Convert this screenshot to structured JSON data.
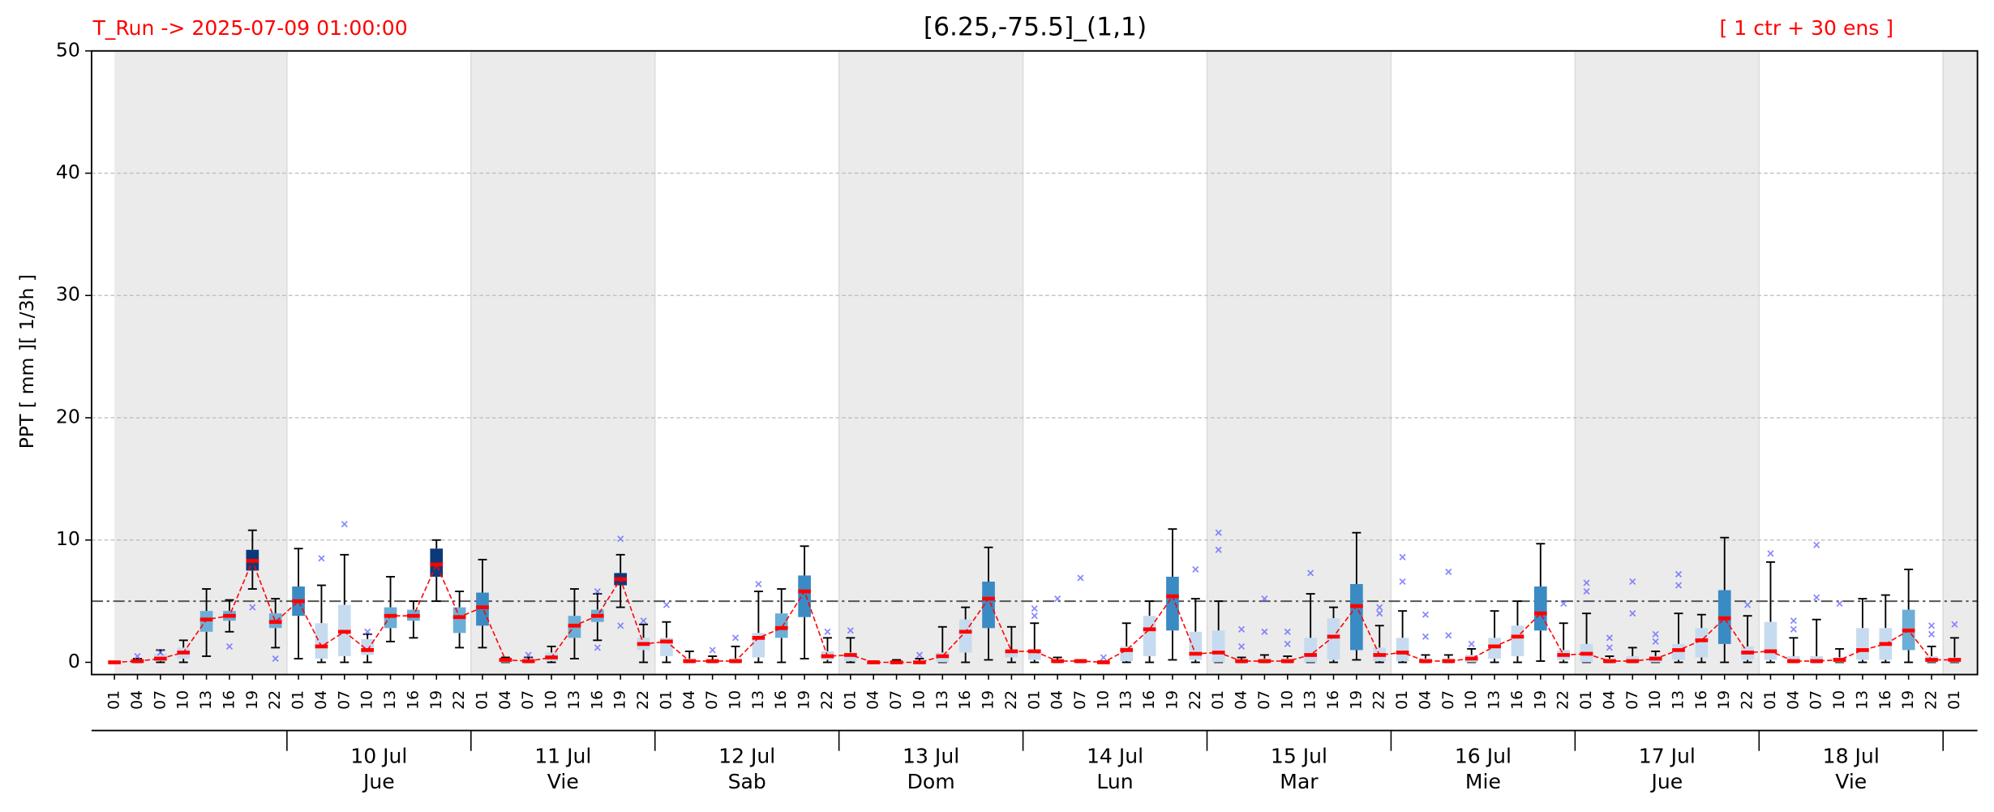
{
  "chart_data": {
    "type": "box",
    "title": "[6.25,-75.5]_(1,1)",
    "run_label": "T_Run -> 2025-07-09  01:00:00",
    "members_label": "[ 1 ctr + 30 ens ]",
    "ylabel": "PPT  [ mm ][ 1/3h ]",
    "ylim": [
      -1,
      50
    ],
    "yticks": [
      0,
      10,
      20,
      30,
      40,
      50
    ],
    "grid": true,
    "threshold": 5,
    "categories": [
      "01",
      "04",
      "07",
      "10",
      "13",
      "16",
      "19",
      "22",
      "01",
      "04",
      "07",
      "10",
      "13",
      "16",
      "19",
      "22",
      "01",
      "04",
      "07",
      "10",
      "13",
      "16",
      "19",
      "22",
      "01",
      "04",
      "07",
      "10",
      "13",
      "16",
      "19",
      "22",
      "01",
      "04",
      "07",
      "10",
      "13",
      "16",
      "19",
      "22",
      "01",
      "04",
      "07",
      "10",
      "13",
      "16",
      "19",
      "22",
      "01",
      "04",
      "07",
      "10",
      "13",
      "16",
      "19",
      "22",
      "01",
      "04",
      "07",
      "10",
      "13",
      "16",
      "19",
      "22",
      "01",
      "04",
      "07",
      "10",
      "13",
      "16",
      "19",
      "22",
      "01",
      "04",
      "07",
      "10",
      "13",
      "16",
      "19",
      "22",
      "01"
    ],
    "day_labels": [
      "10 Jul",
      "11 Jul",
      "12 Jul",
      "13 Jul",
      "14 Jul",
      "15 Jul",
      "16 Jul",
      "17 Jul",
      "18 Jul"
    ],
    "weekdays": [
      "Jue",
      "Vie",
      "Sab",
      "Dom",
      "Lun",
      "Mar",
      "Mie",
      "Jue",
      "Vie"
    ],
    "median": [
      0,
      0.1,
      0.3,
      0.8,
      3.5,
      3.8,
      8.3,
      3.3,
      5.0,
      1.3,
      2.5,
      1.0,
      3.8,
      3.8,
      8.0,
      3.7,
      4.5,
      0.2,
      0.1,
      0.4,
      3.0,
      3.8,
      6.8,
      1.5,
      1.7,
      0.1,
      0.1,
      0.1,
      2.0,
      2.8,
      5.8,
      0.5,
      0.6,
      0,
      0,
      0,
      0.5,
      2.5,
      5.2,
      0.9,
      0.9,
      0.1,
      0.1,
      0,
      1.0,
      2.7,
      5.4,
      0.7,
      0.8,
      0.1,
      0.1,
      0.1,
      0.6,
      2.1,
      4.6,
      0.6,
      0.8,
      0.1,
      0.1,
      0.3,
      1.3,
      2.1,
      4.0,
      0.6,
      0.7,
      0.1,
      0.1,
      0.3,
      1.0,
      1.8,
      3.6,
      0.8,
      0.9,
      0.1,
      0.1,
      0.2,
      1.0,
      1.5,
      2.6,
      0.2,
      0.2
    ],
    "q1": [
      0,
      0,
      0.1,
      0.3,
      2.5,
      3.4,
      7.5,
      2.8,
      3.8,
      0.3,
      0.5,
      0.6,
      2.8,
      3.4,
      7.0,
      2.4,
      3.0,
      0,
      0,
      0.1,
      2.0,
      3.3,
      6.3,
      1.0,
      0.5,
      0,
      0,
      0,
      0.4,
      2.0,
      3.7,
      0.2,
      0.1,
      0,
      0,
      0,
      0,
      0.8,
      2.8,
      0.4,
      0.2,
      0,
      0,
      0,
      0.1,
      0.5,
      2.6,
      0.2,
      0,
      0,
      0,
      0,
      0,
      0.2,
      1.0,
      0.1,
      0.1,
      0,
      0,
      0,
      0.3,
      0.5,
      2.6,
      0.2,
      0,
      0,
      0,
      0,
      0.2,
      0.4,
      1.5,
      0.2,
      0.2,
      0,
      0,
      0,
      0.2,
      0.2,
      1.0,
      0,
      0
    ],
    "q3": [
      0,
      0.2,
      0.7,
      1.2,
      4.2,
      4.2,
      9.2,
      4.0,
      6.2,
      3.2,
      4.7,
      1.9,
      4.5,
      4.3,
      9.3,
      4.5,
      5.7,
      0.3,
      0.2,
      0.8,
      3.8,
      4.3,
      7.3,
      2.0,
      2.0,
      0.3,
      0.2,
      0.3,
      2.4,
      4.0,
      7.1,
      0.9,
      0.8,
      0.1,
      0.1,
      0.1,
      0.8,
      3.5,
      6.6,
      1.0,
      1.0,
      0.2,
      0.2,
      0.1,
      1.3,
      3.8,
      7.0,
      2.5,
      2.6,
      0.2,
      0.3,
      0.3,
      2.0,
      3.6,
      6.4,
      1.2,
      2.0,
      0.3,
      0.3,
      0.6,
      2.0,
      3.0,
      6.2,
      1.0,
      1.5,
      0.3,
      0.5,
      0.5,
      1.5,
      2.8,
      5.9,
      1.3,
      3.3,
      0.5,
      0.5,
      0.4,
      2.8,
      2.8,
      4.3,
      0.5,
      0.4
    ],
    "whisker_low": [
      0,
      0,
      0,
      0,
      0.5,
      2.5,
      6.0,
      1.2,
      0.3,
      0,
      0,
      0,
      1.7,
      2.0,
      5.0,
      1.2,
      1.2,
      0,
      0,
      0,
      0.3,
      1.8,
      4.5,
      0,
      0,
      0,
      0,
      0,
      0,
      0,
      0.3,
      0,
      0,
      0,
      0,
      0,
      0,
      0,
      0.2,
      0,
      0,
      0,
      0,
      0,
      0,
      0,
      0.2,
      0,
      0,
      0,
      0,
      0,
      0,
      0,
      0.2,
      0,
      0,
      0,
      0,
      0,
      0,
      0,
      0.1,
      0,
      0,
      0,
      0,
      0,
      0,
      0,
      0,
      0,
      0,
      0,
      0,
      0,
      0,
      0,
      0,
      0,
      0
    ],
    "whisker_high": [
      0,
      0.3,
      1.0,
      1.8,
      6.0,
      5.1,
      10.8,
      5.2,
      9.3,
      6.3,
      8.8,
      2.3,
      7.0,
      5.0,
      10.0,
      5.8,
      8.4,
      0.4,
      0.4,
      1.3,
      6.0,
      5.6,
      8.8,
      3.1,
      3.3,
      0.9,
      0.5,
      1.3,
      5.8,
      6.0,
      9.5,
      2.0,
      2.0,
      0.1,
      0.2,
      0.3,
      2.9,
      4.5,
      9.4,
      2.9,
      3.2,
      0.4,
      0.2,
      0.1,
      3.2,
      5.0,
      10.9,
      5.2,
      5.0,
      0.4,
      0.6,
      0.5,
      5.6,
      4.5,
      10.6,
      3.0,
      4.2,
      0.6,
      0.6,
      1.1,
      4.2,
      5.0,
      9.7,
      3.2,
      4.0,
      0.5,
      1.2,
      0.9,
      4.0,
      3.9,
      10.2,
      3.8,
      8.2,
      2.0,
      3.5,
      1.1,
      5.2,
      5.5,
      7.6,
      1.3,
      2.0
    ],
    "outliers": [
      [],
      [
        0.5
      ],
      [
        0.8
      ],
      [],
      [],
      [
        1.3
      ],
      [
        4.5
      ],
      [
        0.3
      ],
      [],
      [
        8.5
      ],
      [
        11.3
      ],
      [
        2.5
      ],
      [],
      [],
      [],
      [],
      [],
      [],
      [
        0.6
      ],
      [],
      [],
      [
        1.2,
        5.8
      ],
      [
        3,
        10.1
      ],
      [
        3.4
      ],
      [
        4.7
      ],
      [],
      [
        1.0
      ],
      [
        2.0
      ],
      [
        6.4
      ],
      [],
      [],
      [
        2.5
      ],
      [
        2.6
      ],
      [],
      [],
      [
        0.6
      ],
      [],
      [],
      [],
      [],
      [
        4.4,
        3.8
      ],
      [
        5.2
      ],
      [
        6.9
      ],
      [
        0.4
      ],
      [],
      [],
      [],
      [
        7.6
      ],
      [
        10.6,
        9.2
      ],
      [
        2.7,
        1.3
      ],
      [
        5.2,
        2.5
      ],
      [
        2.5,
        1.5
      ],
      [
        7.3
      ],
      [],
      [],
      [
        4.5,
        4.0
      ],
      [
        8.6,
        6.6
      ],
      [
        3.9,
        2.1
      ],
      [
        7.4,
        2.2
      ],
      [
        1.5
      ],
      [],
      [],
      [],
      [
        4.8
      ],
      [
        6.5,
        5.8
      ],
      [
        2,
        1.2
      ],
      [
        6.6,
        4
      ],
      [
        2.3,
        1.7
      ],
      [
        7.2,
        6.3
      ],
      [],
      [],
      [
        4.7
      ],
      [
        8.9
      ],
      [
        3.4,
        2.7
      ],
      [
        9.6,
        5.3
      ],
      [
        4.8
      ],
      [],
      [],
      [],
      [
        3,
        2.3
      ],
      [
        3.1
      ]
    ],
    "box_colors": [
      "#c6dbef",
      "#c6dbef",
      "#c6dbef",
      "#c6dbef",
      "#6baed6",
      "#6baed6",
      "#0b3a7a",
      "#6baed6",
      "#3a8ac4",
      "#c6dbef",
      "#c6dbef",
      "#c6dbef",
      "#6baed6",
      "#6baed6",
      "#0b3a7a",
      "#6baed6",
      "#3a8ac4",
      "#c6dbef",
      "#c6dbef",
      "#c6dbef",
      "#6baed6",
      "#6baed6",
      "#0b3a7a",
      "#c6dbef",
      "#c6dbef",
      "#c6dbef",
      "#c6dbef",
      "#c6dbef",
      "#c6dbef",
      "#6baed6",
      "#3a8ac4",
      "#c6dbef",
      "#c6dbef",
      "#c6dbef",
      "#c6dbef",
      "#c6dbef",
      "#c6dbef",
      "#c6dbef",
      "#3a8ac4",
      "#c6dbef",
      "#c6dbef",
      "#c6dbef",
      "#c6dbef",
      "#c6dbef",
      "#c6dbef",
      "#c6dbef",
      "#3a8ac4",
      "#c6dbef",
      "#c6dbef",
      "#c6dbef",
      "#c6dbef",
      "#c6dbef",
      "#c6dbef",
      "#c6dbef",
      "#3a8ac4",
      "#c6dbef",
      "#c6dbef",
      "#c6dbef",
      "#c6dbef",
      "#c6dbef",
      "#c6dbef",
      "#c6dbef",
      "#3a8ac4",
      "#c6dbef",
      "#c6dbef",
      "#c6dbef",
      "#c6dbef",
      "#c6dbef",
      "#c6dbef",
      "#c6dbef",
      "#3a8ac4",
      "#c6dbef",
      "#c6dbef",
      "#c6dbef",
      "#c6dbef",
      "#c6dbef",
      "#c6dbef",
      "#c6dbef",
      "#6baed6",
      "#c6dbef",
      "#c6dbef"
    ],
    "median_color": "#ff0000",
    "outlier_color": "#6b6bff",
    "shade_color": "#ebebeb"
  }
}
